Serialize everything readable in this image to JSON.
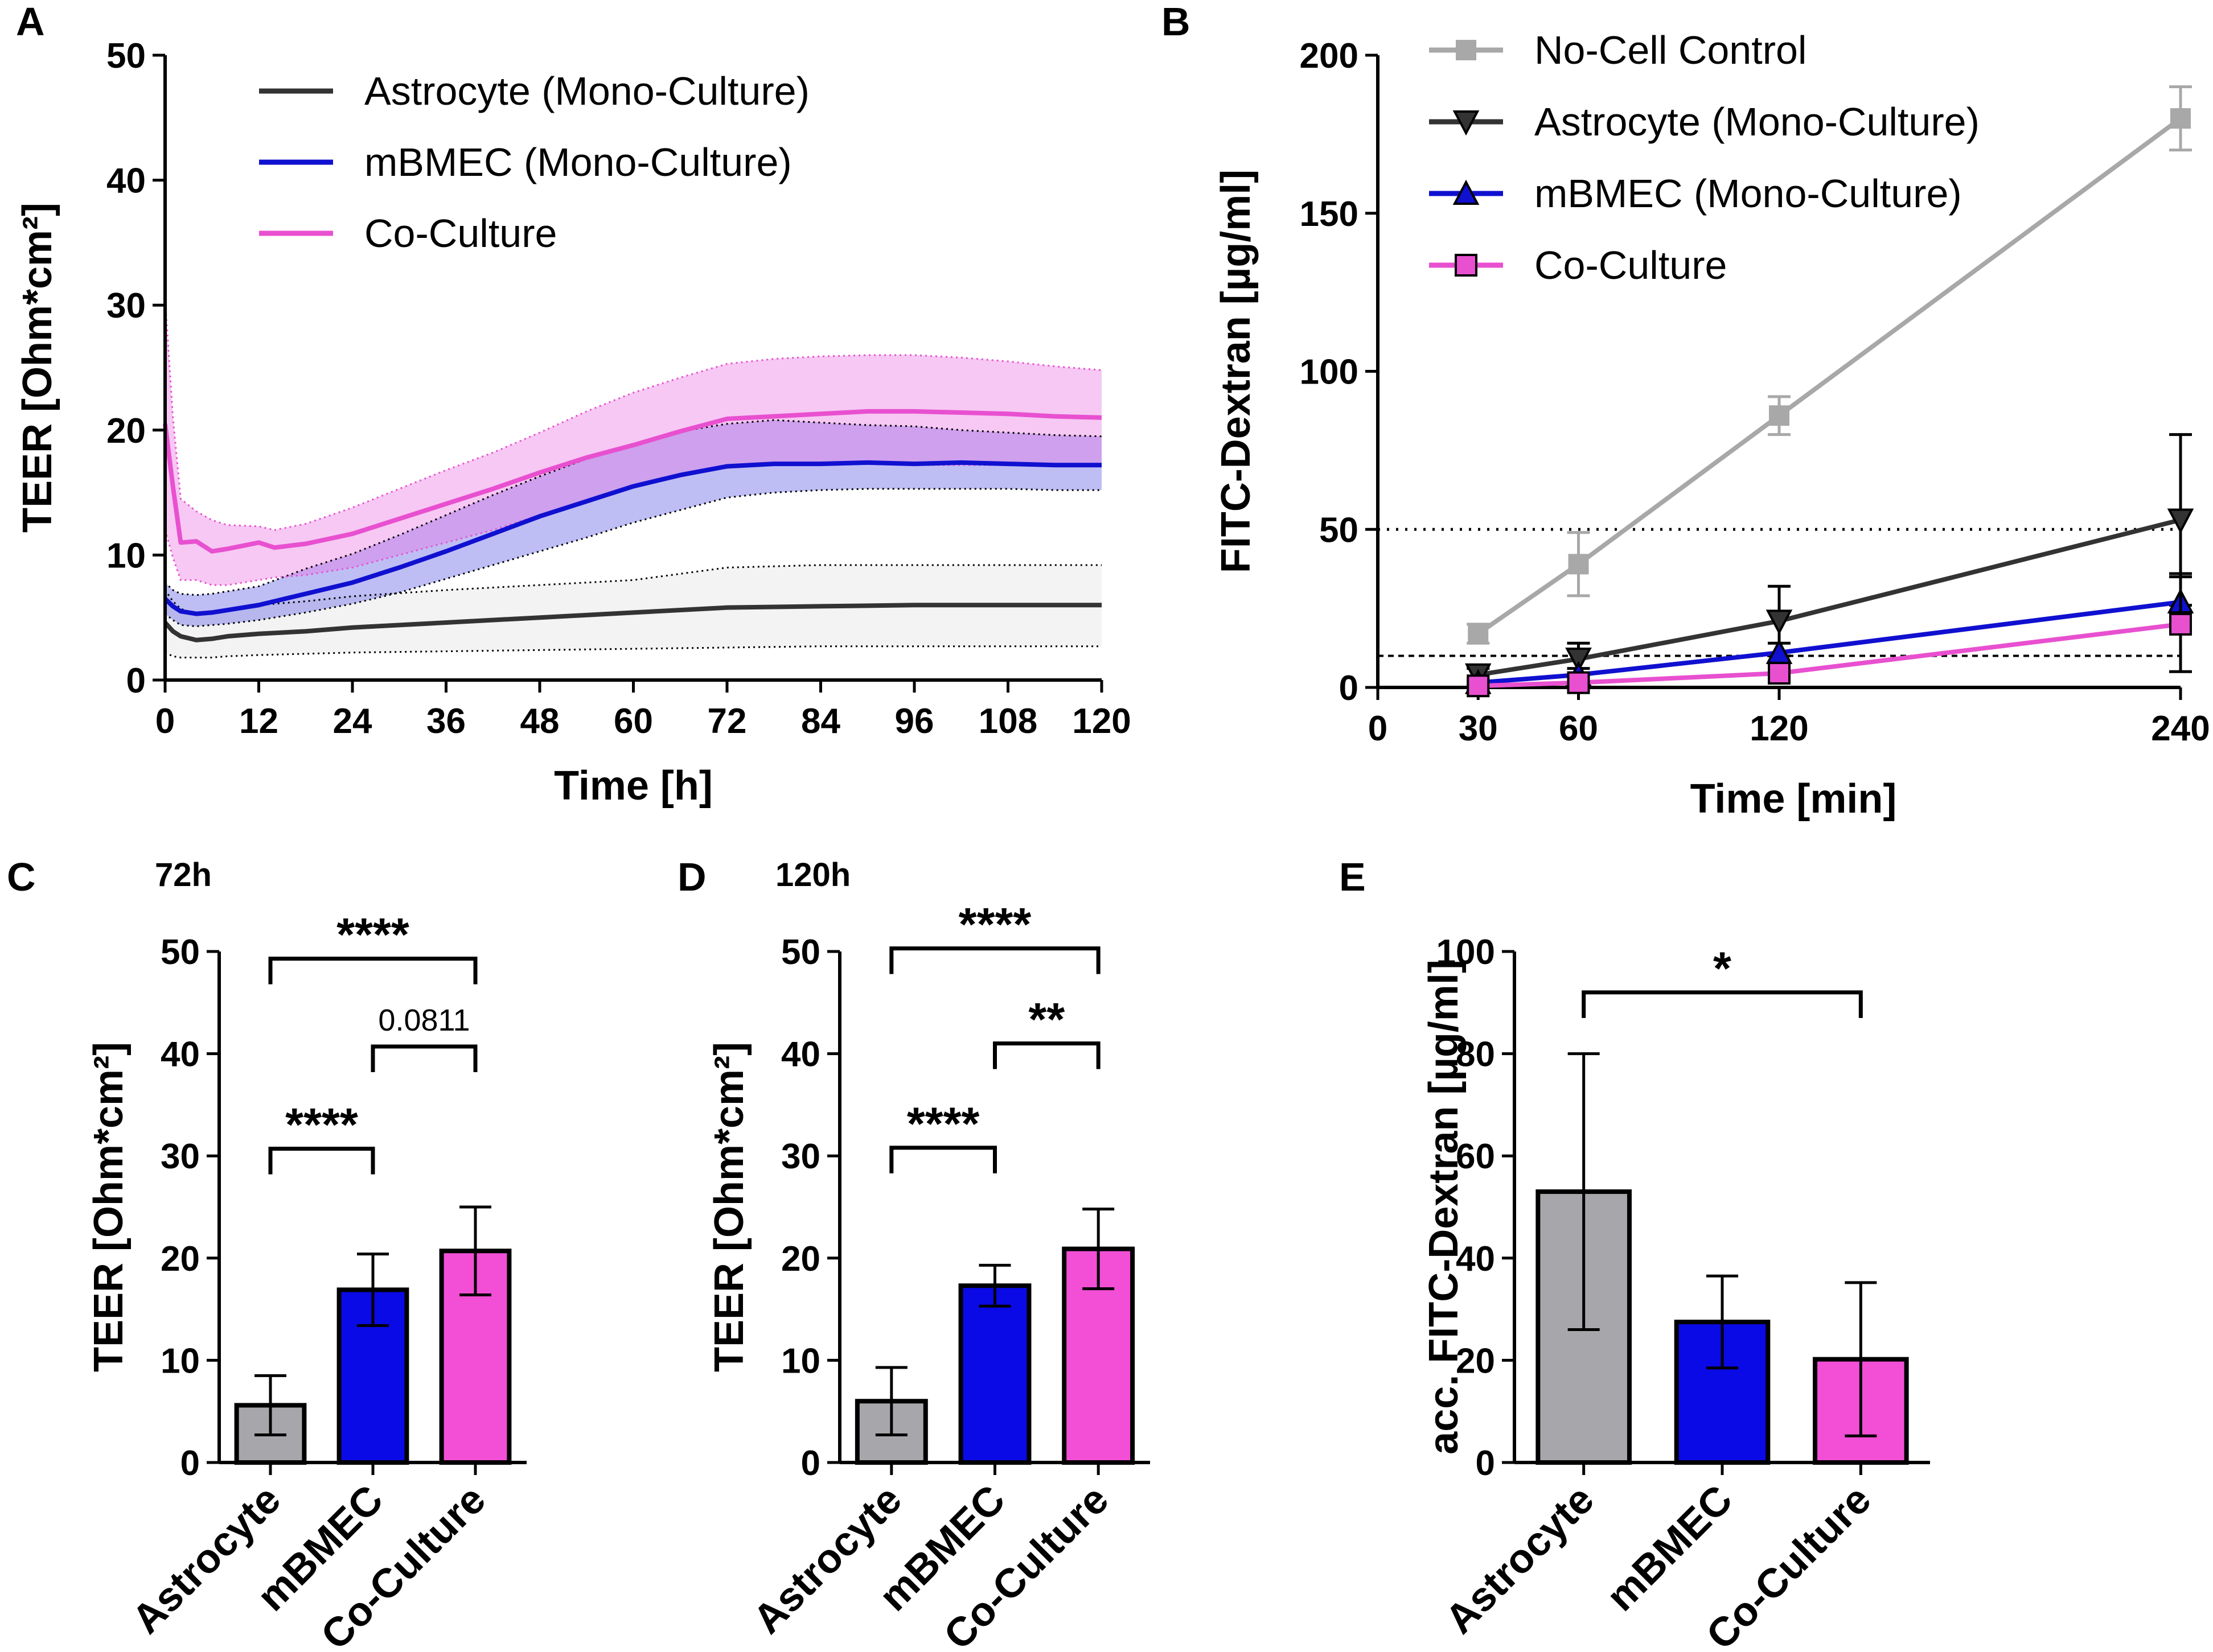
{
  "colors": {
    "astrocyte": "#333333",
    "mbmec": "#1010d0",
    "coculture": "#e850d0",
    "nocell": "#a8a8a8",
    "astro_bar": "#a7a7ab",
    "mbmec_bar": "#0a0ae6",
    "coculture_bar": "#f24fd6"
  },
  "chart_data": [
    {
      "panel": "A",
      "type": "line",
      "title": "",
      "xlabel": "Time [h]",
      "ylabel": "TEER [Ohm*cm²]",
      "xlim": [
        0,
        120
      ],
      "ylim": [
        0,
        50
      ],
      "xticks": [
        0,
        12,
        24,
        36,
        48,
        60,
        72,
        84,
        96,
        108,
        120
      ],
      "yticks": [
        0,
        10,
        20,
        30,
        40,
        50
      ],
      "legend": "top-left",
      "series": [
        {
          "name": "Astrocyte (Mono-Culture)",
          "color_key": "astrocyte",
          "x": [
            0,
            1,
            2,
            4,
            6,
            8,
            12,
            18,
            24,
            36,
            48,
            60,
            72,
            84,
            96,
            108,
            120
          ],
          "y": [
            4.6,
            3.9,
            3.5,
            3.2,
            3.3,
            3.5,
            3.7,
            3.9,
            4.2,
            4.6,
            5.0,
            5.4,
            5.8,
            5.9,
            6.0,
            6.0,
            6.0
          ],
          "upper": [
            7.2,
            6.3,
            5.7,
            5.3,
            5.5,
            5.7,
            6.0,
            6.3,
            6.7,
            7.2,
            7.6,
            8.0,
            9.0,
            9.2,
            9.2,
            9.2,
            9.2
          ],
          "lower": [
            2.2,
            1.9,
            1.8,
            1.8,
            1.8,
            1.9,
            2.0,
            2.1,
            2.2,
            2.3,
            2.4,
            2.5,
            2.6,
            2.7,
            2.7,
            2.7,
            2.7
          ]
        },
        {
          "name": "mBMEC (Mono-Culture)",
          "color_key": "mbmec",
          "x": [
            0,
            1,
            2,
            4,
            6,
            8,
            12,
            18,
            24,
            30,
            36,
            42,
            48,
            54,
            60,
            66,
            72,
            78,
            84,
            90,
            96,
            102,
            108,
            114,
            120
          ],
          "y": [
            6.5,
            5.9,
            5.5,
            5.3,
            5.4,
            5.6,
            6.0,
            6.9,
            7.8,
            9.0,
            10.3,
            11.7,
            13.1,
            14.3,
            15.5,
            16.4,
            17.1,
            17.3,
            17.3,
            17.4,
            17.3,
            17.4,
            17.3,
            17.2,
            17.2
          ],
          "upper": [
            7.8,
            7.2,
            6.9,
            6.8,
            6.9,
            7.1,
            7.5,
            8.9,
            10.1,
            11.6,
            13.2,
            14.8,
            16.3,
            17.7,
            18.9,
            19.9,
            20.5,
            20.8,
            20.6,
            20.4,
            20.3,
            20.0,
            19.8,
            19.6,
            19.5
          ],
          "lower": [
            5.3,
            4.8,
            4.4,
            4.3,
            4.4,
            4.5,
            4.8,
            5.4,
            6.1,
            7.0,
            8.1,
            9.2,
            10.3,
            11.4,
            12.6,
            13.6,
            14.6,
            15.0,
            15.2,
            15.3,
            15.3,
            15.3,
            15.3,
            15.2,
            15.2
          ]
        },
        {
          "name": "Co-Culture",
          "color_key": "coculture",
          "x": [
            0,
            1,
            2,
            4,
            6,
            8,
            12,
            14,
            18,
            24,
            30,
            36,
            42,
            48,
            54,
            60,
            66,
            72,
            78,
            84,
            90,
            96,
            102,
            108,
            114,
            120
          ],
          "y": [
            20.5,
            15.5,
            11.0,
            11.1,
            10.3,
            10.5,
            11.0,
            10.6,
            10.9,
            11.7,
            12.9,
            14.1,
            15.3,
            16.6,
            17.8,
            18.8,
            19.9,
            20.9,
            21.1,
            21.3,
            21.5,
            21.5,
            21.4,
            21.3,
            21.1,
            21.0
          ],
          "upper": [
            30.5,
            21.0,
            14.5,
            13.5,
            12.8,
            12.4,
            12.3,
            12.0,
            12.5,
            13.8,
            15.3,
            16.8,
            18.2,
            19.8,
            21.5,
            23.0,
            24.2,
            25.3,
            25.7,
            25.9,
            26.0,
            26.0,
            25.8,
            25.5,
            25.1,
            24.8
          ],
          "lower": [
            12.0,
            9.8,
            8.0,
            8.0,
            7.6,
            7.6,
            8.0,
            8.2,
            8.4,
            9.0,
            10.0,
            11.0,
            12.0,
            13.2,
            14.4,
            15.4,
            16.3,
            17.0,
            17.2,
            17.2,
            17.3,
            17.2,
            17.2,
            17.2,
            17.2,
            17.1
          ]
        }
      ]
    },
    {
      "panel": "B",
      "type": "line",
      "title": "",
      "xlabel": "Time [min]",
      "ylabel": "FITC-Dextran [µg/ml]",
      "xlim": [
        0,
        240
      ],
      "ylim": [
        0,
        200
      ],
      "xticks": [
        0,
        30,
        60,
        120,
        240
      ],
      "yticks": [
        0,
        50,
        100,
        150,
        200
      ],
      "reference_lines": [
        50,
        10
      ],
      "legend": "top-left",
      "series": [
        {
          "name": "No-Cell Control",
          "color_key": "nocell",
          "marker": "square",
          "x": [
            30,
            60,
            120,
            240
          ],
          "y": [
            17,
            39,
            86,
            180
          ],
          "err": [
            3,
            10,
            6,
            10
          ]
        },
        {
          "name": "Astrocyte (Mono-Culture)",
          "color_key": "astrocyte",
          "marker": "triangle-down",
          "x": [
            30,
            60,
            120,
            240
          ],
          "y": [
            4,
            9,
            21,
            53
          ],
          "err": [
            2,
            5,
            11,
            27
          ]
        },
        {
          "name": "mBMEC (Mono-Culture)",
          "color_key": "mbmec",
          "marker": "triangle-up",
          "x": [
            30,
            60,
            120,
            240
          ],
          "y": [
            1.5,
            4,
            11,
            27
          ],
          "err": [
            1,
            2,
            3,
            9
          ]
        },
        {
          "name": "Co-Culture",
          "color_key": "coculture",
          "marker": "square-outline",
          "x": [
            30,
            60,
            120,
            240
          ],
          "y": [
            0.5,
            1.5,
            4.5,
            20
          ],
          "err": [
            0.5,
            1,
            2,
            15
          ]
        }
      ]
    },
    {
      "panel": "C",
      "type": "bar",
      "title": "72h",
      "xlabel": "",
      "ylabel": "TEER [Ohm*cm²]",
      "ylim": [
        0,
        50
      ],
      "yticks": [
        0,
        10,
        20,
        30,
        40,
        50
      ],
      "categories": [
        "Astrocyte",
        "mBMEC",
        "Co-Culture"
      ],
      "values": [
        5.6,
        16.9,
        20.7
      ],
      "err": [
        2.9,
        3.5,
        4.3
      ],
      "significance": [
        {
          "from": 0,
          "to": 2,
          "label": "****",
          "level": 49.3
        },
        {
          "from": 1,
          "to": 2,
          "label": "0.0811",
          "level": 40.7
        },
        {
          "from": 0,
          "to": 1,
          "label": "****",
          "level": 30.7
        }
      ]
    },
    {
      "panel": "D",
      "type": "bar",
      "title": "120h",
      "xlabel": "",
      "ylabel": "TEER [Ohm*cm²]",
      "ylim": [
        0,
        50
      ],
      "yticks": [
        0,
        10,
        20,
        30,
        40,
        50
      ],
      "categories": [
        "Astrocyte",
        "mBMEC",
        "Co-Culture"
      ],
      "values": [
        6.0,
        17.3,
        20.9
      ],
      "err": [
        3.3,
        2.0,
        3.9
      ],
      "significance": [
        {
          "from": 0,
          "to": 2,
          "label": "****",
          "level": 50.3
        },
        {
          "from": 1,
          "to": 2,
          "label": "**",
          "level": 41.0
        },
        {
          "from": 0,
          "to": 1,
          "label": "****",
          "level": 30.8
        }
      ]
    },
    {
      "panel": "E",
      "type": "bar",
      "title": "",
      "xlabel": "",
      "ylabel": "acc. FITC-Dextran [µg/ml]",
      "ylim": [
        0,
        100
      ],
      "yticks": [
        0,
        20,
        40,
        60,
        80,
        100
      ],
      "categories": [
        "Astrocyte",
        "mBMEC",
        "Co-Culture"
      ],
      "values": [
        53,
        27.5,
        20.2
      ],
      "err": [
        27,
        9,
        15
      ],
      "significance": [
        {
          "from": 0,
          "to": 2,
          "label": "*",
          "level": 92
        }
      ]
    }
  ]
}
